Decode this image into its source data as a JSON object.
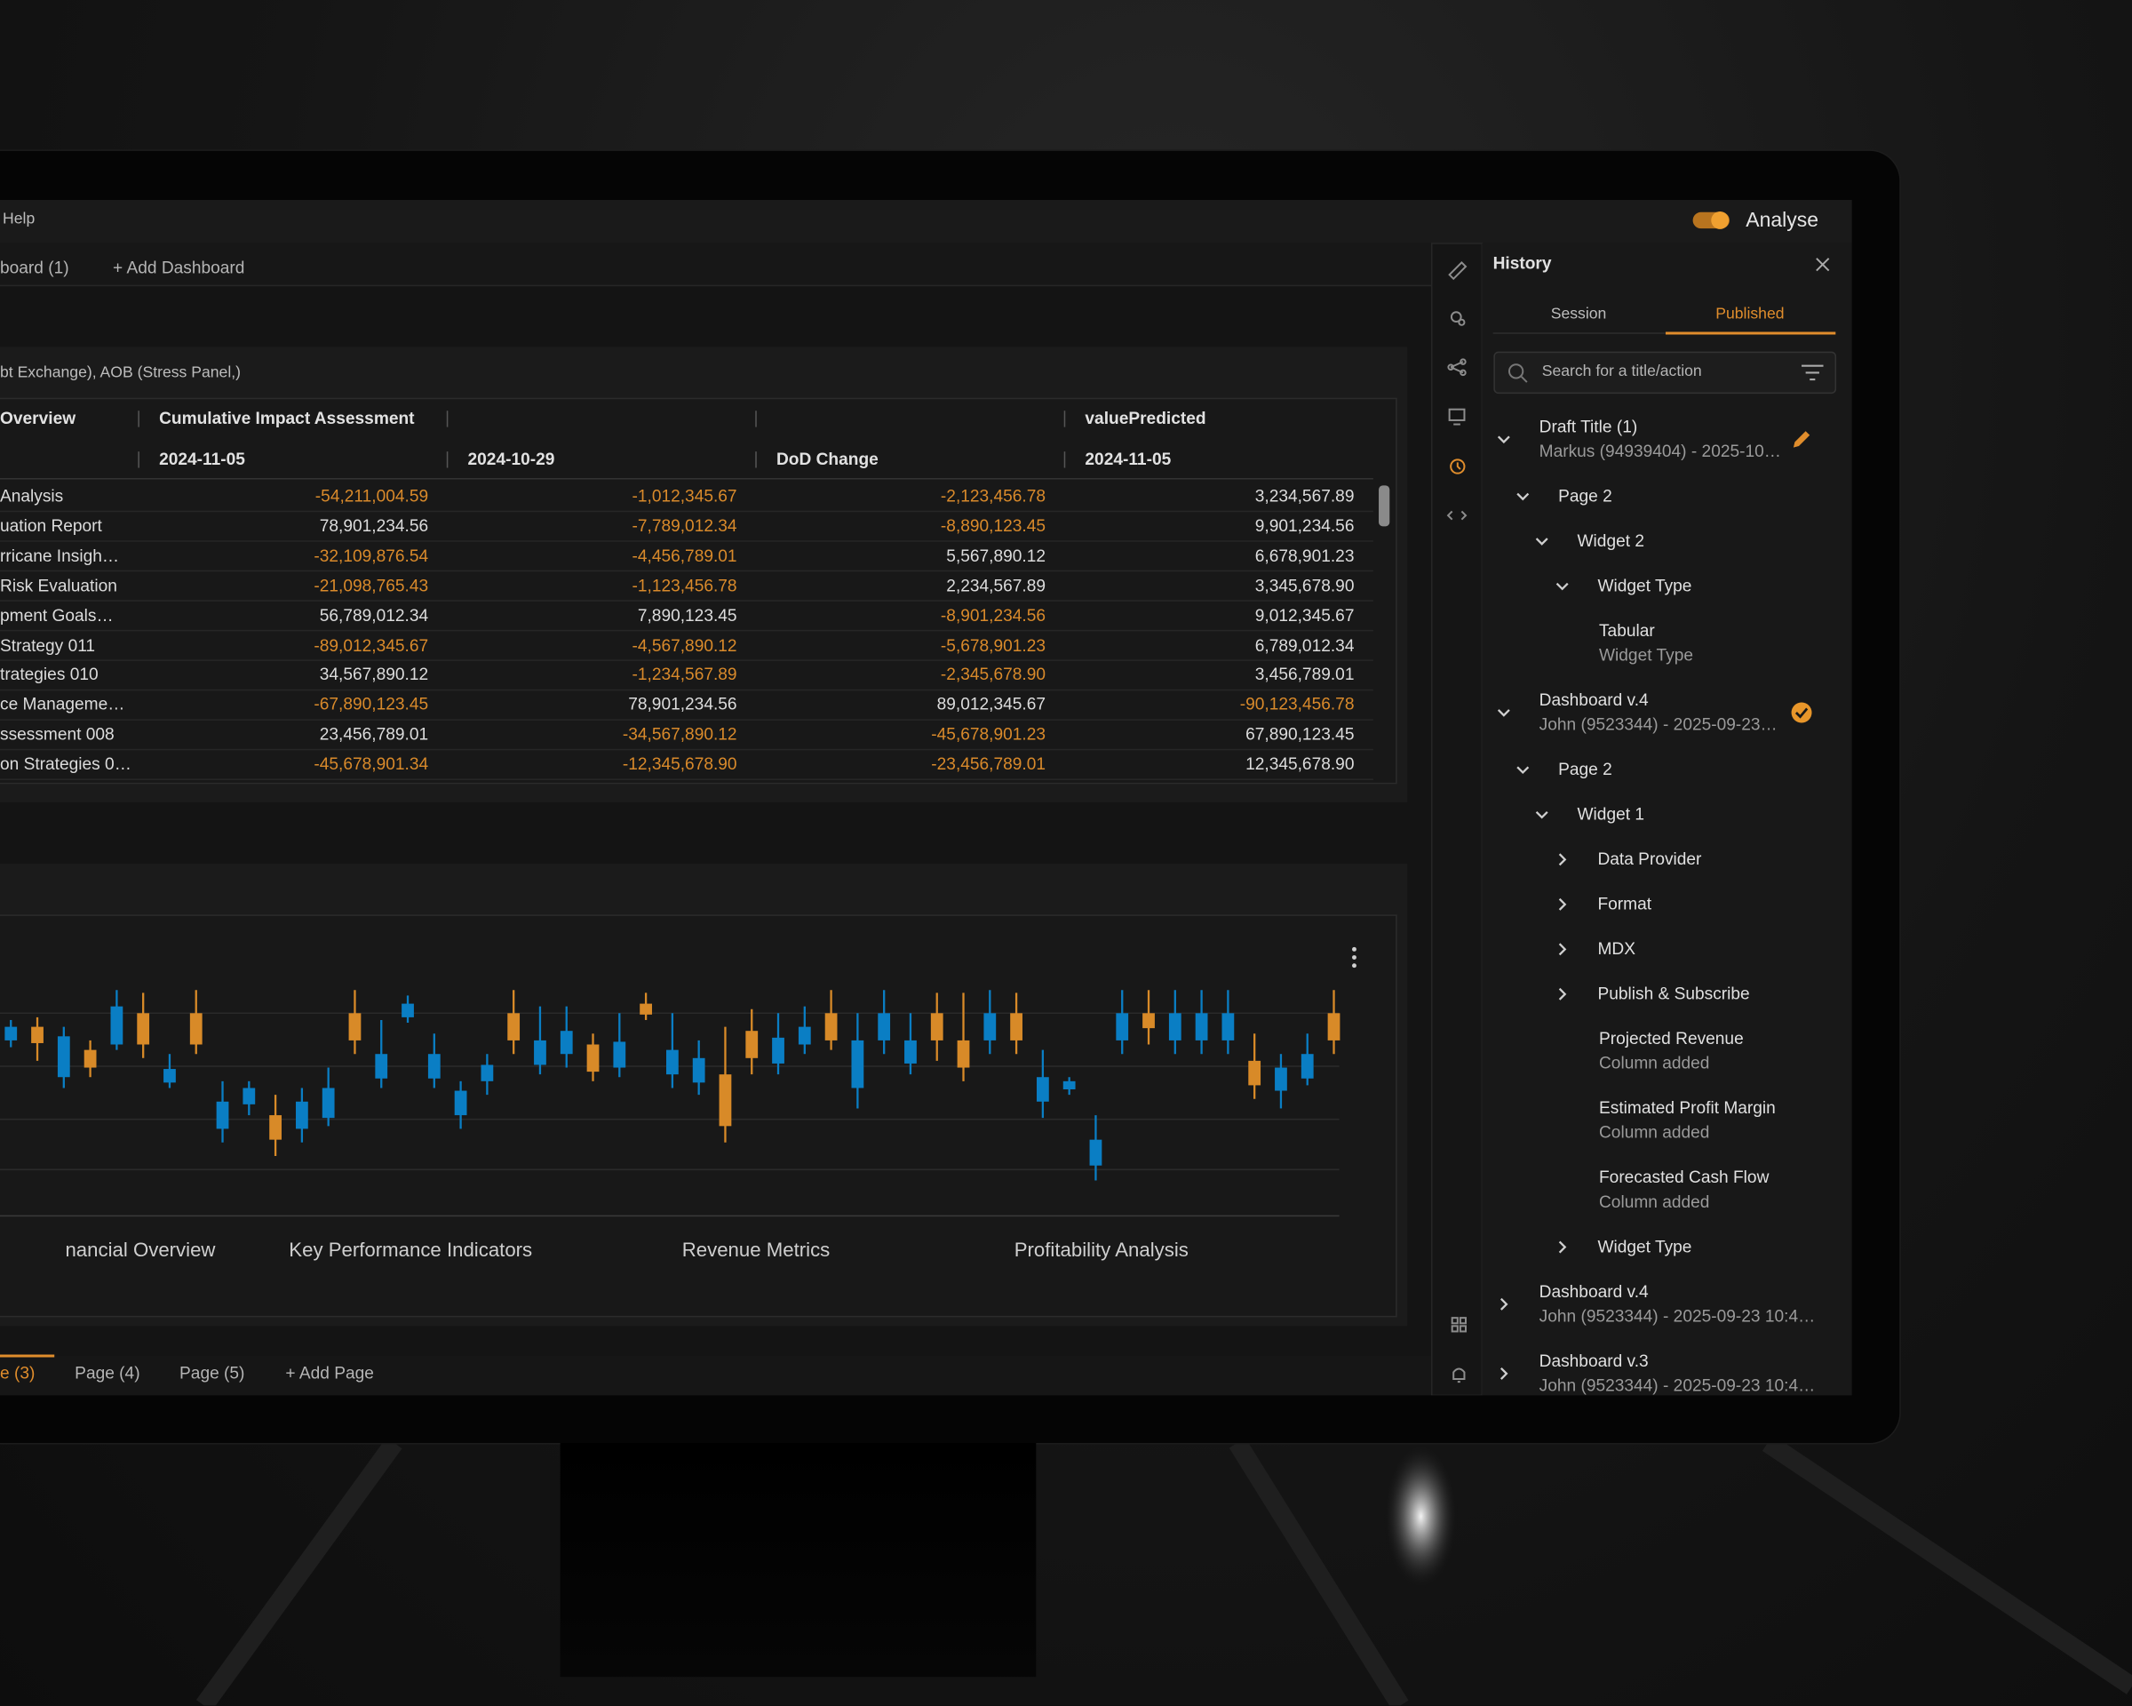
{
  "top_bar": {
    "menu": "Help",
    "mode": "Analyse"
  },
  "dashboard_tabs": {
    "current": "board (1)",
    "add": "+ Add Dashboard"
  },
  "table": {
    "title": "bt Exchange), AOB (Stress Panel,)",
    "headers": [
      {
        "top": "Overview"
      },
      {
        "top": "Cumulative Impact Assessment",
        "bottom": "2024-11-05"
      },
      {
        "bottom": "2024-10-29"
      },
      {
        "bottom": "DoD Change"
      },
      {
        "top": "valuePredicted",
        "bottom": "2024-11-05"
      }
    ],
    "rows": [
      [
        "Analysis",
        "-54,211,004.59",
        "-1,012,345.67",
        "-2,123,456.78",
        "3,234,567.89"
      ],
      [
        "uation Report",
        "78,901,234.56",
        "-7,789,012.34",
        "-8,890,123.45",
        "9,901,234.56"
      ],
      [
        "rricane Insigh…",
        "-32,109,876.54",
        "-4,456,789.01",
        "5,567,890.12",
        "6,678,901.23"
      ],
      [
        "Risk Evaluation",
        "-21,098,765.43",
        "-1,123,456.78",
        "2,234,567.89",
        "3,345,678.90"
      ],
      [
        "pment Goals…",
        "56,789,012.34",
        "7,890,123.45",
        "-8,901,234.56",
        "9,012,345.67"
      ],
      [
        " Strategy 011",
        "-89,012,345.67",
        "-4,567,890.12",
        "-5,678,901.23",
        "6,789,012.34"
      ],
      [
        "trategies 010",
        "34,567,890.12",
        "-1,234,567.89",
        "-2,345,678.90",
        "3,456,789.01"
      ],
      [
        "ce Manageme…",
        "-67,890,123.45",
        "78,901,234.56",
        "89,012,345.67",
        "-90,123,456.78"
      ],
      [
        "ssessment 008",
        "23,456,789.01",
        "-34,567,890.12",
        "-45,678,901.23",
        "67,890,123.45"
      ],
      [
        "on Strategies 0…",
        "-45,678,901.34",
        "-12,345,678.90",
        "-23,456,789.01",
        "12,345,678.90"
      ]
    ]
  },
  "chart_data": {
    "type": "candlestick",
    "groups": [
      "nancial Overview",
      "Key Performance Indicators",
      "Revenue Metrics",
      "Profitability Analysis"
    ],
    "open": [
      67.5,
      72.5,
      54,
      64,
      66,
      77.5,
      52,
      77.5,
      35,
      44,
      40,
      35,
      39,
      77.5,
      53.5,
      76,
      53.5,
      40,
      52.5,
      77.5,
      58.5,
      62.5,
      66,
      57.5,
      81,
      55,
      52,
      55,
      71,
      59,
      66,
      77.5,
      50,
      67.5,
      59,
      77.5,
      67.5,
      67.5,
      77.5,
      45,
      49.5,
      21.5,
      67.5,
      77.5,
      67.5,
      67.5,
      67.5,
      60,
      49,
      53.5,
      77.5
    ],
    "high": [
      75,
      76,
      72.5,
      67.5,
      86,
      85,
      62.5,
      86,
      52.5,
      52.5,
      47.5,
      50,
      57.5,
      86,
      75,
      84,
      70,
      52.5,
      62.5,
      86,
      80,
      80,
      70,
      77.5,
      85,
      77.5,
      67.5,
      72.5,
      79,
      77.5,
      80,
      86,
      77.5,
      86,
      77.5,
      85,
      85,
      86,
      85,
      64,
      54,
      40,
      86,
      86,
      86,
      86,
      86,
      70,
      62.5,
      70,
      86
    ],
    "low": [
      65,
      60,
      50,
      54,
      64,
      61,
      50,
      62.5,
      30,
      40,
      25,
      30,
      36,
      62.5,
      50,
      74,
      50,
      35,
      47.5,
      62.5,
      55,
      57.5,
      52.5,
      54,
      75,
      50,
      47.5,
      30,
      55,
      55,
      62.5,
      64,
      42.5,
      62.5,
      55,
      60,
      52.5,
      62.5,
      62.5,
      39,
      47.5,
      16,
      62.5,
      66,
      62.5,
      62.5,
      62.5,
      46,
      42.5,
      51,
      62.5
    ],
    "close": [
      72.5,
      66.5,
      69,
      57.5,
      80,
      66,
      57,
      66,
      45,
      50,
      31,
      45,
      50,
      67.5,
      62.5,
      81,
      62.5,
      49,
      58.5,
      67.5,
      67.5,
      71,
      56,
      67,
      77,
      64,
      61,
      36,
      61,
      68.5,
      72.5,
      67.5,
      67.5,
      77.5,
      67.5,
      67.5,
      57.5,
      77.5,
      67.5,
      54,
      52.5,
      31,
      77.5,
      72,
      77.5,
      77.5,
      77.5,
      51,
      57.5,
      62.5,
      67.5
    ],
    "ylim": [
      0,
      90
    ],
    "up_color": "#0a7ec4",
    "down_color": "#d88a28"
  },
  "pages": {
    "tabs": [
      "e (3)",
      "Page (4)",
      "Page (5)"
    ],
    "add": "+ Add Page"
  },
  "history": {
    "title": "History",
    "tabs": [
      "Session",
      "Published"
    ],
    "search": "Search for a title/action",
    "versions": [
      {
        "title": "Draft Title (1)",
        "meta": "Markus (94939404) - 2025-10…",
        "expanded": true,
        "icon": "edit",
        "children": [
          {
            "title": "Page 2",
            "expanded": true,
            "children": [
              {
                "title": "Widget 2",
                "expanded": true,
                "children": [
                  {
                    "title": "Widget Type",
                    "expanded": true,
                    "children": [
                      {
                        "title": "Tabular",
                        "meta": "Widget Type"
                      }
                    ]
                  }
                ]
              }
            ]
          }
        ]
      },
      {
        "title": "Dashboard v.4",
        "meta": "John (9523344) - 2025-09-23…",
        "expanded": true,
        "icon": "check",
        "children": [
          {
            "title": "Page 2",
            "expanded": true,
            "children": [
              {
                "title": "Widget 1",
                "expanded": true,
                "children": [
                  {
                    "title": "Data Provider",
                    "expanded": false
                  },
                  {
                    "title": "Format",
                    "expanded": false
                  },
                  {
                    "title": "MDX",
                    "expanded": false
                  },
                  {
                    "title": "Publish & Subscribe",
                    "expanded": false
                  },
                  {
                    "title": "Projected Revenue",
                    "meta": "Column added"
                  },
                  {
                    "title": "Estimated Profit Margin",
                    "meta": "Column added"
                  },
                  {
                    "title": "Forecasted Cash Flow",
                    "meta": "Column added"
                  },
                  {
                    "title": "Widget Type",
                    "expanded": false
                  }
                ]
              }
            ]
          }
        ]
      },
      {
        "title": "Dashboard v.4",
        "meta": "John (9523344) - 2025-09-23 10:4…",
        "expanded": false
      },
      {
        "title": "Dashboard v.3",
        "meta": "John (9523344) - 2025-09-23 10:4…",
        "expanded": false
      }
    ]
  }
}
